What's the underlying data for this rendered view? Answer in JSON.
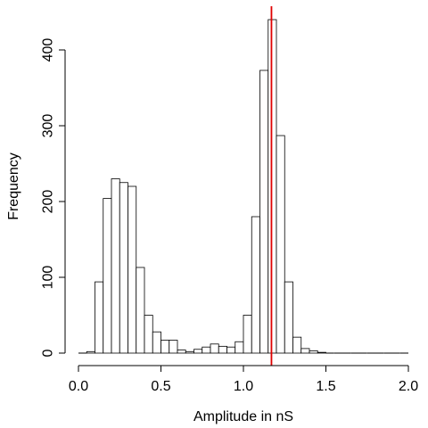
{
  "chart_data": {
    "type": "bar",
    "xlabel": "Amplitude in nS",
    "ylabel": "Frequency",
    "xlim": [
      0.0,
      2.0
    ],
    "ylim": [
      0,
      440
    ],
    "x_ticks": [
      "0.0",
      "0.5",
      "1.0",
      "1.5",
      "2.0"
    ],
    "y_ticks": [
      "0",
      "100",
      "200",
      "300",
      "400"
    ],
    "bin_width": 0.05,
    "bins": [
      {
        "x0": 0.0,
        "x1": 0.05,
        "value": 0
      },
      {
        "x0": 0.05,
        "x1": 0.1,
        "value": 2
      },
      {
        "x0": 0.1,
        "x1": 0.15,
        "value": 94
      },
      {
        "x0": 0.15,
        "x1": 0.2,
        "value": 204
      },
      {
        "x0": 0.2,
        "x1": 0.25,
        "value": 230
      },
      {
        "x0": 0.25,
        "x1": 0.3,
        "value": 225
      },
      {
        "x0": 0.3,
        "x1": 0.35,
        "value": 220
      },
      {
        "x0": 0.35,
        "x1": 0.4,
        "value": 113
      },
      {
        "x0": 0.4,
        "x1": 0.45,
        "value": 50
      },
      {
        "x0": 0.45,
        "x1": 0.5,
        "value": 28
      },
      {
        "x0": 0.5,
        "x1": 0.55,
        "value": 17
      },
      {
        "x0": 0.55,
        "x1": 0.6,
        "value": 17
      },
      {
        "x0": 0.6,
        "x1": 0.65,
        "value": 4
      },
      {
        "x0": 0.65,
        "x1": 0.7,
        "value": 2
      },
      {
        "x0": 0.7,
        "x1": 0.75,
        "value": 5
      },
      {
        "x0": 0.75,
        "x1": 0.8,
        "value": 8
      },
      {
        "x0": 0.8,
        "x1": 0.85,
        "value": 12
      },
      {
        "x0": 0.85,
        "x1": 0.9,
        "value": 9
      },
      {
        "x0": 0.9,
        "x1": 0.95,
        "value": 8
      },
      {
        "x0": 0.95,
        "x1": 1.0,
        "value": 15
      },
      {
        "x0": 1.0,
        "x1": 1.05,
        "value": 50
      },
      {
        "x0": 1.05,
        "x1": 1.1,
        "value": 180
      },
      {
        "x0": 1.1,
        "x1": 1.15,
        "value": 373
      },
      {
        "x0": 1.15,
        "x1": 1.2,
        "value": 440
      },
      {
        "x0": 1.2,
        "x1": 1.25,
        "value": 287
      },
      {
        "x0": 1.25,
        "x1": 1.3,
        "value": 94
      },
      {
        "x0": 1.3,
        "x1": 1.35,
        "value": 21
      },
      {
        "x0": 1.35,
        "x1": 1.4,
        "value": 6
      },
      {
        "x0": 1.4,
        "x1": 1.45,
        "value": 3
      },
      {
        "x0": 1.45,
        "x1": 1.5,
        "value": 1
      },
      {
        "x0": 1.5,
        "x1": 1.55,
        "value": 0
      },
      {
        "x0": 1.55,
        "x1": 1.6,
        "value": 0
      },
      {
        "x0": 1.6,
        "x1": 1.65,
        "value": 0
      },
      {
        "x0": 1.65,
        "x1": 1.7,
        "value": 0
      },
      {
        "x0": 1.7,
        "x1": 1.75,
        "value": 0
      },
      {
        "x0": 1.75,
        "x1": 1.8,
        "value": 0
      },
      {
        "x0": 1.8,
        "x1": 1.85,
        "value": 0
      },
      {
        "x0": 1.85,
        "x1": 1.9,
        "value": 0
      },
      {
        "x0": 1.9,
        "x1": 1.95,
        "value": 0
      },
      {
        "x0": 1.95,
        "x1": 2.0,
        "value": 0
      }
    ],
    "reference_line": {
      "x": 1.17,
      "color": "#e00000"
    },
    "grid": false,
    "legend": "none",
    "bar_fill": "#ffffff",
    "bar_stroke": "#000000"
  }
}
